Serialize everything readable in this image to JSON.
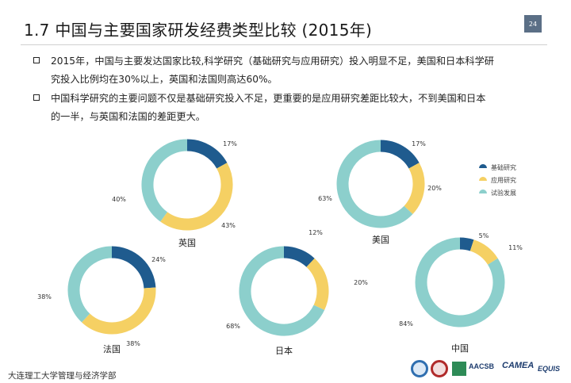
{
  "header": {
    "title": "1.7  中国与主要国家研发经费类型比较 (2015年)",
    "page_number": "24"
  },
  "bullets": [
    {
      "lines": [
        "2015年，中国与主要发达国家比较,科学研究（基础研究与应用研究）投入明显不足，美国和日本科学研",
        "究投入比例均在30%以上，英国和法国则高达60%。"
      ]
    },
    {
      "lines": [
        "中国科学研究的主要问题不仅是基础研究投入不足，更重要的是应用研究差距比较大，不到美国和日本",
        "的一半，与英国和法国的差距更大。"
      ]
    }
  ],
  "legend": [
    {
      "label": "基础研究",
      "color": "#1f5b8e"
    },
    {
      "label": "应用研究",
      "color": "#f5d063"
    },
    {
      "label": "试验发展",
      "color": "#8ccfcc"
    }
  ],
  "chart_data": [
    {
      "type": "pie",
      "name": "英国",
      "categories": [
        "基础研究",
        "应用研究",
        "试验发展"
      ],
      "values": [
        17,
        43,
        40
      ],
      "labels": [
        "17%",
        "43%",
        "40%"
      ]
    },
    {
      "type": "pie",
      "name": "美国",
      "categories": [
        "基础研究",
        "应用研究",
        "试验发展"
      ],
      "values": [
        17,
        20,
        63
      ],
      "labels": [
        "17%",
        "20%",
        "63%"
      ]
    },
    {
      "type": "pie",
      "name": "法国",
      "categories": [
        "基础研究",
        "应用研究",
        "试验发展"
      ],
      "values": [
        24,
        38,
        38
      ],
      "labels": [
        "24%",
        "38%",
        "38%"
      ]
    },
    {
      "type": "pie",
      "name": "日本",
      "categories": [
        "基础研究",
        "应用研究",
        "试验发展"
      ],
      "values": [
        12,
        20,
        68
      ],
      "labels": [
        "12%",
        "20%",
        "68%"
      ]
    },
    {
      "type": "pie",
      "name": "中国",
      "categories": [
        "基础研究",
        "应用研究",
        "试验发展"
      ],
      "values": [
        5,
        11,
        84
      ],
      "labels": [
        "5%",
        "11%",
        "84%"
      ]
    }
  ],
  "footer": {
    "institution": "大连理工大学管理与经济学部"
  },
  "logos": {
    "aacsb": "AACSB",
    "camea": "CAMEA",
    "equis": "EQUIS"
  }
}
